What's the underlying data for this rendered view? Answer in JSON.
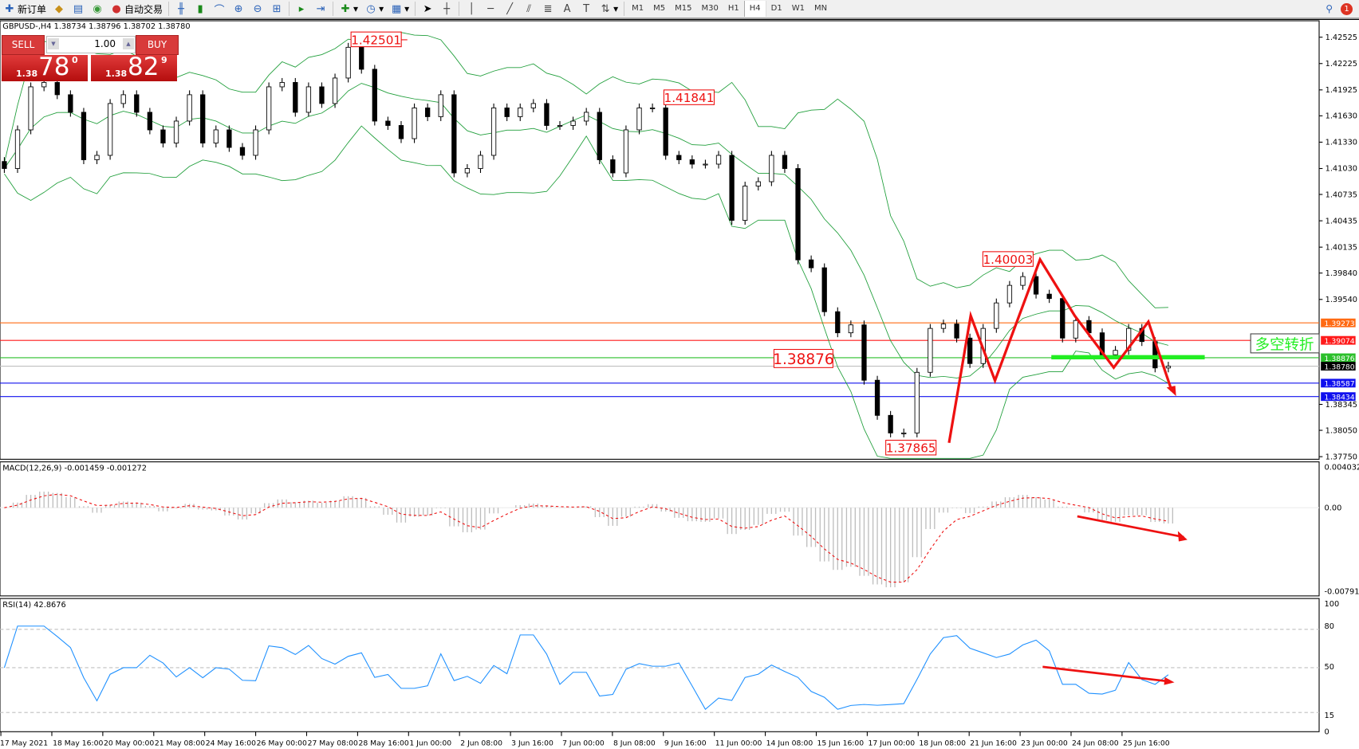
{
  "toolbar": {
    "new_order": "新订单",
    "auto_trading": "自动交易",
    "icons": [
      "new-order-icon",
      "strategy-icon",
      "data-window-icon",
      "signals-icon",
      "auto-trading-icon",
      "bar-chart-icon",
      "candlestick-icon",
      "line-chart-icon",
      "zoom-in-icon",
      "zoom-out-icon",
      "tile-windows-icon",
      "auto-scroll-icon",
      "chart-shift-icon",
      "indicators-icon",
      "periods-icon",
      "templates-icon",
      "cursor-icon",
      "crosshair-icon",
      "vertical-line-icon",
      "horizontal-line-icon",
      "trendline-icon",
      "equidistant-channel-icon",
      "fibonacci-icon",
      "text-icon",
      "text-label-icon",
      "arrows-icon"
    ],
    "timeframes": [
      "M1",
      "M5",
      "M15",
      "M30",
      "H1",
      "H4",
      "D1",
      "W1",
      "MN"
    ],
    "active_timeframe": "H4",
    "notification_count": "1"
  },
  "chart": {
    "header": "GBPUSD-,H4  1.38734 1.38796 1.38702 1.38780",
    "trade_panel": {
      "sell_label": "SELL",
      "buy_label": "BUY",
      "lot": "1.00",
      "sell_prefix": "1.38",
      "sell_big": "78",
      "sell_sup": "0",
      "buy_prefix": "1.38",
      "buy_big": "82",
      "buy_sup": "9"
    },
    "annotations": {
      "high1": "1.42501",
      "high2": "1.41841",
      "high3": "1.40003",
      "low1": "1.37865",
      "neckline": "1.38876",
      "reversal_text": "多空转折"
    },
    "price_axis": [
      "1.42525",
      "1.42225",
      "1.41925",
      "1.41630",
      "1.41330",
      "1.41030",
      "1.40735",
      "1.40435",
      "1.40135",
      "1.39840",
      "1.39540",
      "1.38345",
      "1.38050",
      "1.37750"
    ],
    "levels": [
      {
        "price": "1.39273",
        "color": "#ff6a13"
      },
      {
        "price": "1.39074",
        "color": "#ff1a1a"
      },
      {
        "price": "1.38876",
        "color": "#2bbf2b"
      },
      {
        "price": "1.38780",
        "color": "#000000"
      },
      {
        "price": "1.38587",
        "color": "#1010ee"
      },
      {
        "price": "1.38434",
        "color": "#1010ee"
      }
    ],
    "time_axis": [
      "17 May 2021",
      "18 May 16:00",
      "20 May 00:00",
      "21 May 08:00",
      "24 May 16:00",
      "26 May 00:00",
      "27 May 08:00",
      "28 May 16:00",
      "1 Jun 00:00",
      "2 Jun 08:00",
      "3 Jun 16:00",
      "7 Jun 00:00",
      "8 Jun 08:00",
      "9 Jun 16:00",
      "11 Jun 00:00",
      "14 Jun 08:00",
      "15 Jun 16:00",
      "17 Jun 00:00",
      "18 Jun 08:00",
      "21 Jun 16:00",
      "23 Jun 00:00",
      "24 Jun 08:00",
      "25 Jun 16:00"
    ]
  },
  "macd": {
    "label": "MACD(12,26,9) -0.001459 -0.001272",
    "axis": [
      "0.004032",
      "0.00",
      "-0.007917"
    ]
  },
  "rsi": {
    "label": "RSI(14) 42.8676",
    "axis": [
      "100",
      "80",
      "50",
      "15",
      "0"
    ]
  },
  "chart_data": {
    "type": "candlestick",
    "symbol": "GBPUSD",
    "timeframe": "H4",
    "ylim": [
      1.3775,
      1.42525
    ],
    "closes": [
      1.4103,
      1.4147,
      1.4196,
      1.4201,
      1.4187,
      1.4167,
      1.4113,
      1.4118,
      1.4177,
      1.4187,
      1.4167,
      1.4147,
      1.4132,
      1.4157,
      1.4187,
      1.4132,
      1.4147,
      1.4127,
      1.4118,
      1.4147,
      1.4196,
      1.4201,
      1.4167,
      1.4196,
      1.4177,
      1.4206,
      1.4241,
      1.4216,
      1.4157,
      1.4152,
      1.4137,
      1.4172,
      1.4162,
      1.4187,
      1.4098,
      1.4103,
      1.4118,
      1.4172,
      1.4162,
      1.4172,
      1.4177,
      1.4152,
      1.4152,
      1.4157,
      1.4167,
      1.4113,
      1.4098,
      1.4147,
      1.4172,
      1.4172,
      1.4118,
      1.4113,
      1.4108,
      1.4108,
      1.4118,
      1.4044,
      1.4083,
      1.4088,
      1.4118,
      1.4103,
      1.3999,
      1.399,
      1.394,
      1.3916,
      1.3925,
      1.3862,
      1.3822,
      1.3802,
      1.3802,
      1.3871,
      1.3921,
      1.3926,
      1.391,
      1.3881,
      1.3921,
      1.395,
      1.397,
      1.398,
      1.396,
      1.3955,
      1.391,
      1.393,
      1.3916,
      1.3891,
      1.3896,
      1.3921,
      1.3906,
      1.3876,
      1.3878
    ]
  }
}
